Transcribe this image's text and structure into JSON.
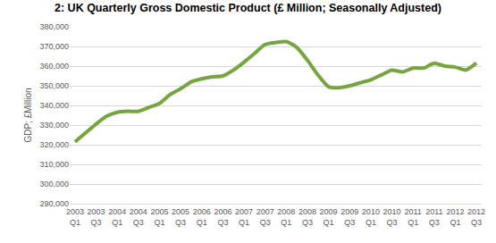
{
  "chart_data": {
    "type": "line",
    "title": "2: UK Quarterly Gross Domestic Product (£ Million; Seasonally Adjusted)",
    "y_label": "GDP; £Million",
    "categories": [
      "2003 Q1",
      null,
      "2003 Q3",
      null,
      "2004 Q1",
      null,
      "2004 Q3",
      null,
      "2005 Q1",
      null,
      "2005 Q3",
      null,
      "2006 Q1",
      null,
      "2006 Q3",
      null,
      "2007 Q1",
      null,
      "2007 Q3",
      null,
      "2008 Q1",
      null,
      "2008 Q3",
      null,
      "2009 Q1",
      null,
      "2009 Q3",
      null,
      "2010 Q1",
      null,
      "2010 Q3",
      null,
      "2011 Q1",
      null,
      "2011 Q3",
      null,
      "2012 Q1",
      null,
      "2012 Q3"
    ],
    "values": [
      321500,
      326000,
      330500,
      334500,
      336500,
      337000,
      337000,
      339000,
      341000,
      345500,
      348500,
      352000,
      353500,
      354500,
      355000,
      358000,
      362000,
      366500,
      371000,
      372000,
      372500,
      369500,
      363000,
      355500,
      349500,
      349000,
      350000,
      351500,
      353000,
      355500,
      358000,
      357000,
      359000,
      359000,
      361500,
      360000,
      359500,
      358000,
      361500
    ],
    "color": "#76a540",
    "ylim": [
      290000,
      380000
    ],
    "yticks": [
      {
        "value": 290000,
        "label": "290,000"
      },
      {
        "value": 300000,
        "label": "300,000"
      },
      {
        "value": 310000,
        "label": "310,000"
      },
      {
        "value": 320000,
        "label": "320,000"
      },
      {
        "value": 330000,
        "label": "330,000"
      },
      {
        "value": 340000,
        "label": "340,000"
      },
      {
        "value": 350000,
        "label": "350,000"
      },
      {
        "value": 360000,
        "label": "360,000"
      },
      {
        "value": 370000,
        "label": "370,000"
      },
      {
        "value": 380000,
        "label": "380,000"
      }
    ],
    "grid": true
  }
}
